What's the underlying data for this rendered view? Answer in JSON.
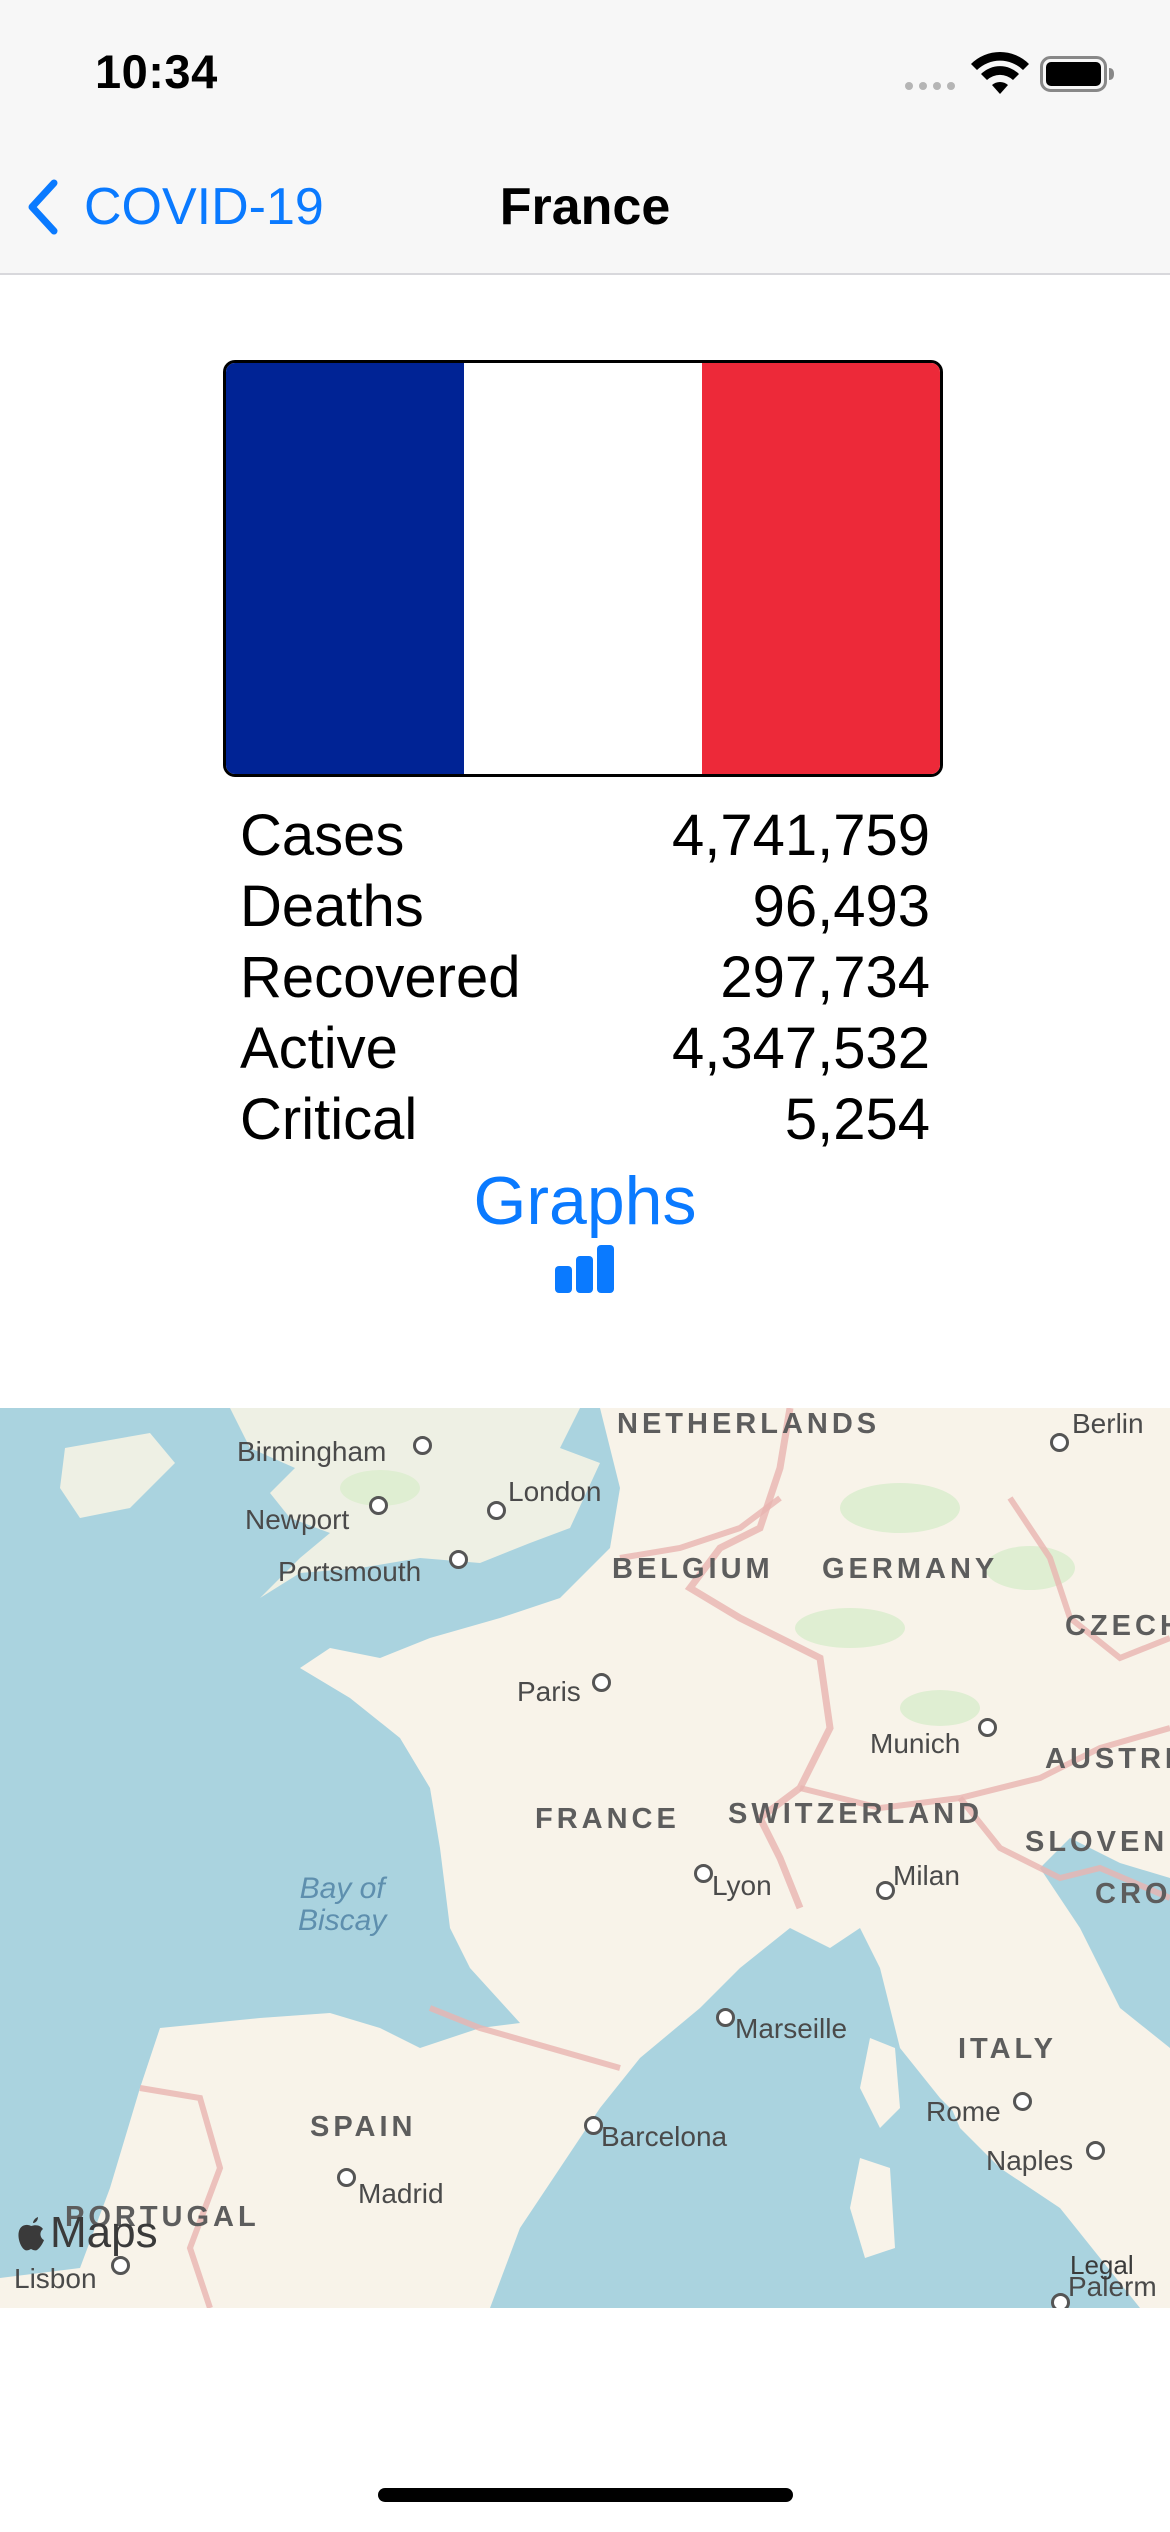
{
  "status_bar": {
    "time": "10:34"
  },
  "nav": {
    "back_label": "COVID-19",
    "title": "France"
  },
  "flag": {
    "colors": [
      "#002395",
      "#ffffff",
      "#ed2939"
    ]
  },
  "stats": [
    {
      "label": "Cases",
      "value": "4,741,759"
    },
    {
      "label": "Deaths",
      "value": "96,493"
    },
    {
      "label": "Recovered",
      "value": "297,734"
    },
    {
      "label": "Active",
      "value": "4,347,532"
    },
    {
      "label": "Critical",
      "value": "5,254"
    }
  ],
  "graphs": {
    "label": "Graphs",
    "icon": "bar-chart-icon"
  },
  "map": {
    "countries": [
      "NETHERLANDS",
      "BELGIUM",
      "GERMANY",
      "CZECH",
      "AUSTRI",
      "FRANCE",
      "SWITZERLAND",
      "SLOVENI",
      "CROA",
      "ITALY",
      "SPAIN",
      "PORTUGAL"
    ],
    "cities": [
      "Birmingham",
      "London",
      "Newport",
      "Portsmouth",
      "Berlin",
      "Paris",
      "Munich",
      "Lyon",
      "Milan",
      "Marseille",
      "Rome",
      "Barcelona",
      "Naples",
      "Madrid",
      "Lisbon",
      "Palerm"
    ],
    "water": [
      "Bay of",
      "Biscay"
    ],
    "logo_text": "Maps",
    "legal_label": "Legal"
  },
  "colors": {
    "accent": "#0a7aff",
    "bar_background": "#f7f7f7",
    "map_water": "#aad3df",
    "map_land": "#f8f3e9"
  }
}
